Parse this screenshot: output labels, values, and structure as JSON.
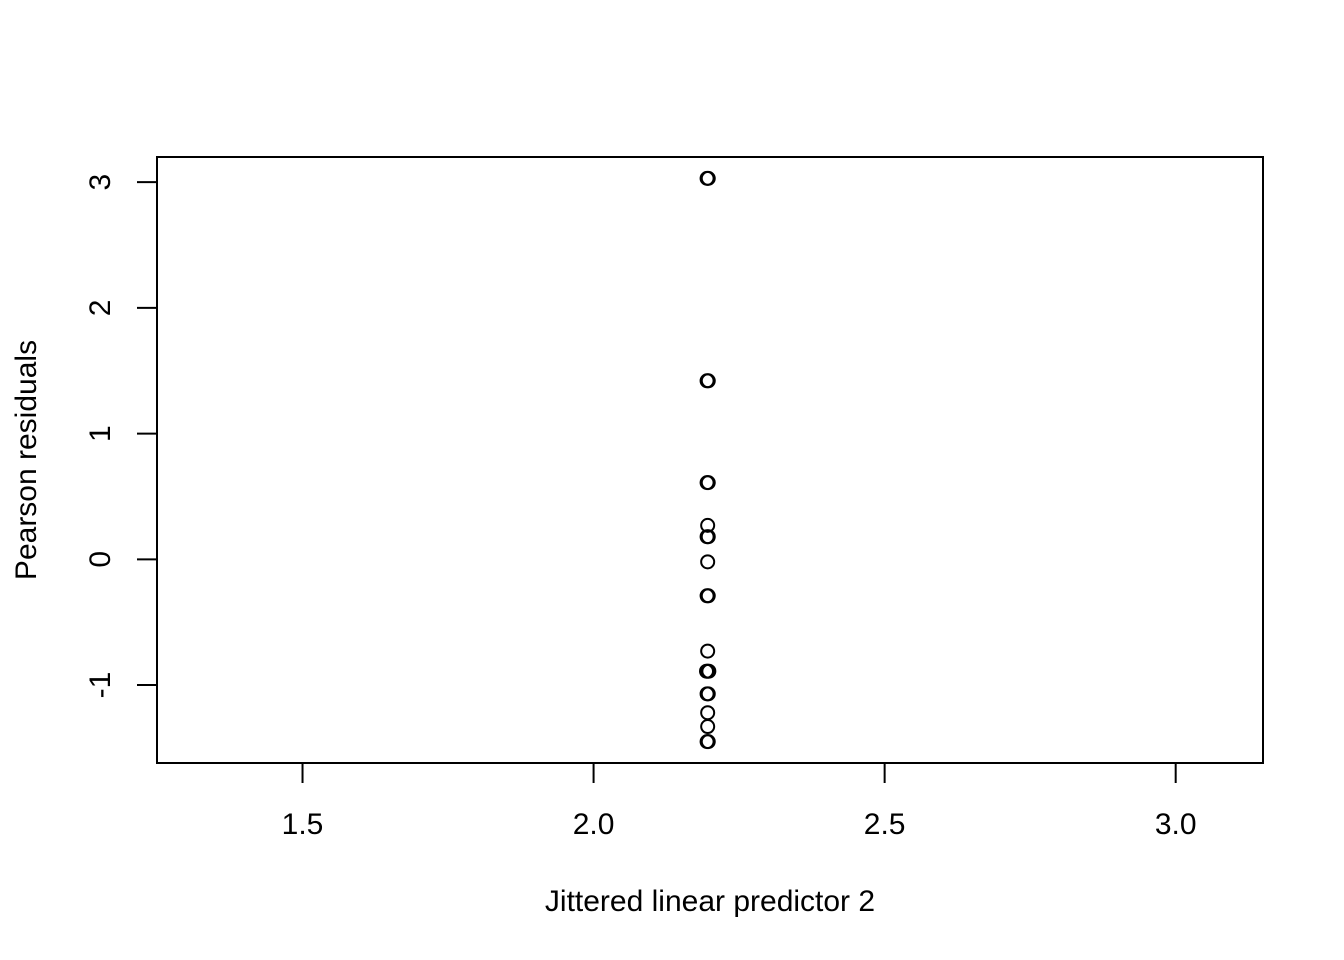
{
  "chart_data": {
    "type": "scatter",
    "title": "",
    "xlabel": "Jittered linear predictor 2",
    "ylabel": "Pearson residuals",
    "xlim": [
      1.25,
      3.15
    ],
    "ylim": [
      -1.62,
      3.2
    ],
    "x_ticks": [
      1.5,
      2.0,
      2.5,
      3.0
    ],
    "x_tick_labels": [
      "1.5",
      "2.0",
      "2.5",
      "3.0"
    ],
    "y_ticks": [
      -1,
      0,
      1,
      2,
      3
    ],
    "y_tick_labels": [
      "-1",
      "0",
      "1",
      "2",
      "3"
    ],
    "grid": false,
    "legend": "none",
    "series": [
      {
        "marker": "open-circle",
        "color": "#000000",
        "points": [
          {
            "x": 2.195,
            "y": 3.03
          },
          {
            "x": 2.197,
            "y": 3.03
          },
          {
            "x": 2.195,
            "y": 1.42
          },
          {
            "x": 2.197,
            "y": 1.42
          },
          {
            "x": 2.195,
            "y": 0.61
          },
          {
            "x": 2.197,
            "y": 0.61
          },
          {
            "x": 2.196,
            "y": 0.27
          },
          {
            "x": 2.195,
            "y": 0.18
          },
          {
            "x": 2.197,
            "y": 0.18
          },
          {
            "x": 2.196,
            "y": -0.02
          },
          {
            "x": 2.195,
            "y": -0.29
          },
          {
            "x": 2.197,
            "y": -0.29
          },
          {
            "x": 2.196,
            "y": -0.73
          },
          {
            "x": 2.194,
            "y": -0.89
          },
          {
            "x": 2.196,
            "y": -0.89
          },
          {
            "x": 2.198,
            "y": -0.89
          },
          {
            "x": 2.195,
            "y": -1.07
          },
          {
            "x": 2.197,
            "y": -1.07
          },
          {
            "x": 2.196,
            "y": -1.22
          },
          {
            "x": 2.196,
            "y": -1.33
          },
          {
            "x": 2.195,
            "y": -1.45
          },
          {
            "x": 2.197,
            "y": -1.45
          }
        ]
      }
    ]
  }
}
